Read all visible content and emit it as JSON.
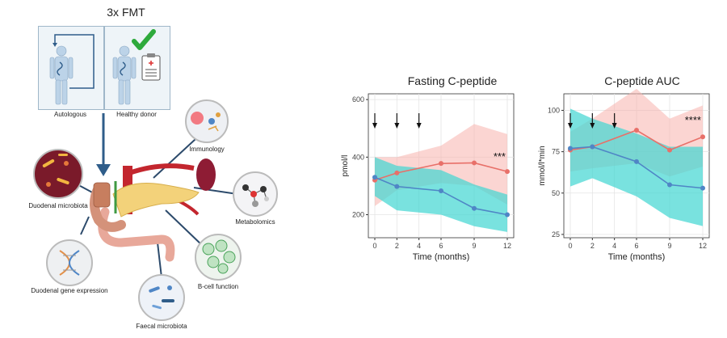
{
  "diagram": {
    "title": "3x FMT",
    "panels": {
      "left": "Autologous",
      "right": "Healthy donor"
    },
    "labels": {
      "duodenal_microbiota": "Duodenal microbiota",
      "immunology": "Immunology",
      "metabolomics": "Metabolomics",
      "duodenal_gene_expression": "Duodenal gene expression",
      "b_cell_function": "B-cell function",
      "faecal_microbiota": "Faecal microbiota"
    },
    "icons": [
      "human-body-icon",
      "loop-arrow-icon",
      "checkmark-icon",
      "clipboard-icon",
      "pancreas-illustration",
      "microscope-icon",
      "molecule-icon",
      "dna-icon",
      "cells-icon",
      "bacteria-icon"
    ],
    "colors": {
      "checkmark": "#2eaa3c",
      "arrow": "#2f5d8a",
      "panel_bg": "#eef4f8"
    }
  },
  "chart_data": [
    {
      "type": "line",
      "title": "Fasting C-peptide",
      "xlabel": "Time (months)",
      "ylabel": "pmol/l",
      "x": [
        0,
        2,
        4,
        6,
        9,
        12
      ],
      "x_ticks": [
        "0",
        "2",
        "4",
        "6",
        "9",
        "12"
      ],
      "y_ticks": [
        "200",
        "400",
        "600"
      ],
      "ylim": [
        120,
        620
      ],
      "dosing_arrows_at": [
        0,
        2,
        4
      ],
      "series": [
        {
          "color": "#e87069",
          "band_color": "#f7b3ad",
          "points": [
            [
              0,
              320
            ],
            [
              2,
              345
            ],
            [
              6,
              378
            ],
            [
              9,
              380
            ],
            [
              12,
              350
            ]
          ],
          "band": [
            [
              0,
              400,
              230
            ],
            [
              2,
              400,
              285
            ],
            [
              6,
              440,
              310
            ],
            [
              9,
              515,
              300
            ],
            [
              12,
              480,
              235
            ]
          ]
        },
        {
          "color": "#4f86c6",
          "band_color": "#40d6d2",
          "points": [
            [
              0,
              330
            ],
            [
              2,
              298
            ],
            [
              6,
              283
            ],
            [
              9,
              222
            ],
            [
              12,
              200
            ]
          ],
          "band": [
            [
              0,
              400,
              265
            ],
            [
              2,
              370,
              215
            ],
            [
              6,
              355,
              200
            ],
            [
              9,
              305,
              160
            ],
            [
              12,
              270,
              140
            ]
          ]
        }
      ],
      "annotation": {
        "text": "***",
        "x": 12,
        "y": 390
      },
      "grid": true
    },
    {
      "type": "line",
      "title": "C-peptide AUC",
      "xlabel": "Time (months)",
      "ylabel": "mmol/l*min",
      "x": [
        0,
        2,
        4,
        6,
        9,
        12
      ],
      "x_ticks": [
        "0",
        "2",
        "4",
        "6",
        "9",
        "12"
      ],
      "y_ticks": [
        "25",
        "50",
        "75",
        "100"
      ],
      "ylim": [
        23,
        110
      ],
      "dosing_arrows_at": [
        0,
        2,
        4
      ],
      "series": [
        {
          "color": "#e87069",
          "band_color": "#f7b3ad",
          "points": [
            [
              0,
              76
            ],
            [
              2,
              78
            ],
            [
              6,
              88
            ],
            [
              9,
              76
            ],
            [
              12,
              84
            ]
          ],
          "band": [
            [
              0,
              87,
              63
            ],
            [
              2,
              95,
              65
            ],
            [
              6,
              113,
              68
            ],
            [
              9,
              95,
              60
            ],
            [
              12,
              103,
              66
            ]
          ]
        },
        {
          "color": "#4f86c6",
          "band_color": "#40d6d2",
          "points": [
            [
              0,
              77
            ],
            [
              2,
              78
            ],
            [
              6,
              69
            ],
            [
              9,
              55
            ],
            [
              12,
              53
            ]
          ],
          "band": [
            [
              0,
              101,
              54
            ],
            [
              2,
              95,
              59
            ],
            [
              6,
              86,
              48
            ],
            [
              9,
              78,
              35
            ],
            [
              12,
              78,
              30
            ]
          ]
        }
      ],
      "annotation": {
        "text": "****",
        "x": 12,
        "y": 92
      },
      "grid": true
    }
  ]
}
